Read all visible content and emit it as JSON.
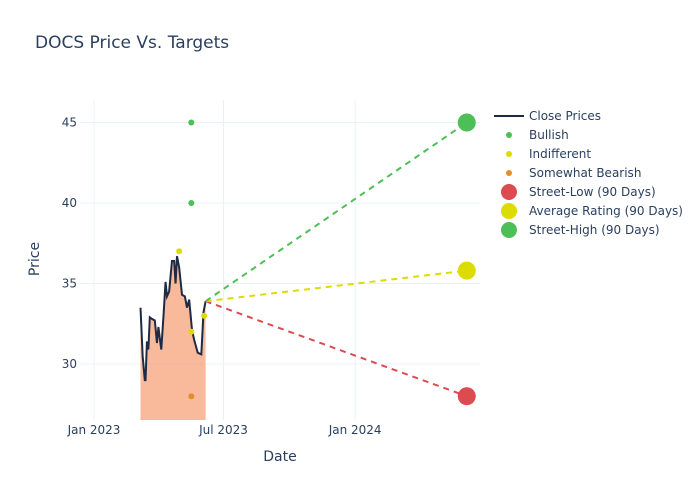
{
  "chart_data": {
    "type": "line",
    "title": "DOCS Price Vs. Targets",
    "xlabel": "Date",
    "ylabel": "Price",
    "xlim": [
      "2022-11-20",
      "2024-07-01"
    ],
    "ylim": [
      26.6,
      46.4
    ],
    "x_ticks": [
      {
        "date": "2023-01-01",
        "label": "Jan 2023"
      },
      {
        "date": "2023-07-01",
        "label": "Jul 2023"
      },
      {
        "date": "2024-01-01",
        "label": "Jan 2024"
      }
    ],
    "y_ticks": [
      30,
      35,
      40,
      45
    ],
    "grid": true,
    "legend_position": "right",
    "colors": {
      "close": "#1f2a44",
      "fill": "#f7a37a",
      "bullish": "#4cbf56",
      "indifferent": "#dcdc00",
      "bearish": "#e08f2a",
      "low": "#dc4b50",
      "avg": "#dcdc00",
      "high": "#4cbf56"
    },
    "close_prices": {
      "name": "Close Prices",
      "x": [
        "2023-03-07",
        "2023-03-10",
        "2023-03-13",
        "2023-03-14",
        "2023-03-16",
        "2023-03-18",
        "2023-03-20",
        "2023-03-23",
        "2023-03-27",
        "2023-03-30",
        "2023-04-01",
        "2023-04-05",
        "2023-04-08",
        "2023-04-11",
        "2023-04-13",
        "2023-04-16",
        "2023-04-20",
        "2023-04-23",
        "2023-04-25",
        "2023-04-27",
        "2023-04-30",
        "2023-05-04",
        "2023-05-08",
        "2023-05-11",
        "2023-05-14",
        "2023-05-18",
        "2023-05-21",
        "2023-05-26",
        "2023-05-31",
        "2023-06-03",
        "2023-06-06"
      ],
      "y": [
        33.5,
        30.5,
        29.0,
        29.0,
        31.4,
        30.9,
        32.9,
        32.8,
        32.7,
        31.3,
        32.3,
        30.9,
        32.9,
        35.1,
        34.2,
        34.5,
        36.4,
        36.4,
        35.0,
        36.7,
        36.0,
        34.3,
        34.2,
        33.5,
        34.0,
        32.1,
        31.5,
        30.7,
        30.6,
        33.2,
        33.9
      ]
    },
    "ratings": [
      {
        "name": "Bullish",
        "points": [
          {
            "x": "2023-05-17",
            "y": 45
          },
          {
            "x": "2023-05-17",
            "y": 40
          }
        ]
      },
      {
        "name": "Indifferent",
        "points": [
          {
            "x": "2023-04-30",
            "y": 37
          },
          {
            "x": "2023-05-17",
            "y": 32
          },
          {
            "x": "2023-06-04",
            "y": 33
          }
        ]
      },
      {
        "name": "Somewhat Bearish",
        "points": [
          {
            "x": "2023-05-17",
            "y": 28
          }
        ]
      }
    ],
    "targets": [
      {
        "name": "Street-Low (90 Days)",
        "x": "2024-06-05",
        "y": 28
      },
      {
        "name": "Average Rating (90 Days)",
        "x": "2024-06-05",
        "y": 35.8
      },
      {
        "name": "Street-High (90 Days)",
        "x": "2024-06-05",
        "y": 45
      }
    ]
  }
}
